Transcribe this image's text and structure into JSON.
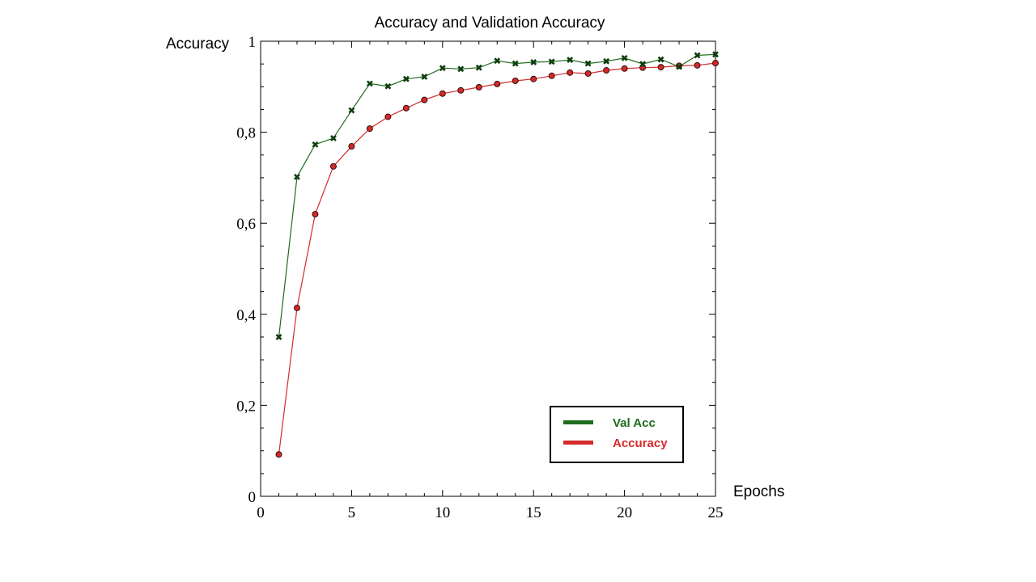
{
  "chart_data": {
    "type": "line",
    "title": "Accuracy and Validation Accuracy",
    "xlabel": "Epochs",
    "ylabel": "Accuracy",
    "xlim": [
      0,
      25
    ],
    "ylim": [
      0,
      1
    ],
    "x_ticks": [
      0,
      5,
      10,
      15,
      20,
      25
    ],
    "x_tick_labels": [
      "0",
      "5",
      "10",
      "15",
      "20",
      "25"
    ],
    "y_ticks": [
      0,
      0.2,
      0.4,
      0.6,
      0.8,
      1
    ],
    "y_tick_labels": [
      "0",
      "0,2",
      "0,4",
      "0,6",
      "0,8",
      "1"
    ],
    "grid": false,
    "legend_position": "bottom-right",
    "x": [
      1,
      2,
      3,
      4,
      5,
      6,
      7,
      8,
      9,
      10,
      11,
      12,
      13,
      14,
      15,
      16,
      17,
      18,
      19,
      20,
      21,
      22,
      23,
      24,
      25
    ],
    "series": [
      {
        "name": "Val Acc",
        "color": "#1e6b1e",
        "marker": "x",
        "values": [
          0.35,
          0.702,
          0.773,
          0.787,
          0.848,
          0.907,
          0.901,
          0.917,
          0.922,
          0.941,
          0.939,
          0.942,
          0.957,
          0.951,
          0.954,
          0.955,
          0.959,
          0.951,
          0.956,
          0.963,
          0.95,
          0.96,
          0.944,
          0.969,
          0.971
        ]
      },
      {
        "name": "Accuracy",
        "color": "#d42a2a",
        "marker": "circle",
        "values": [
          0.092,
          0.414,
          0.62,
          0.725,
          0.769,
          0.808,
          0.834,
          0.853,
          0.871,
          0.885,
          0.892,
          0.899,
          0.906,
          0.913,
          0.917,
          0.924,
          0.931,
          0.929,
          0.936,
          0.94,
          0.942,
          0.943,
          0.946,
          0.947,
          0.952
        ]
      }
    ]
  }
}
